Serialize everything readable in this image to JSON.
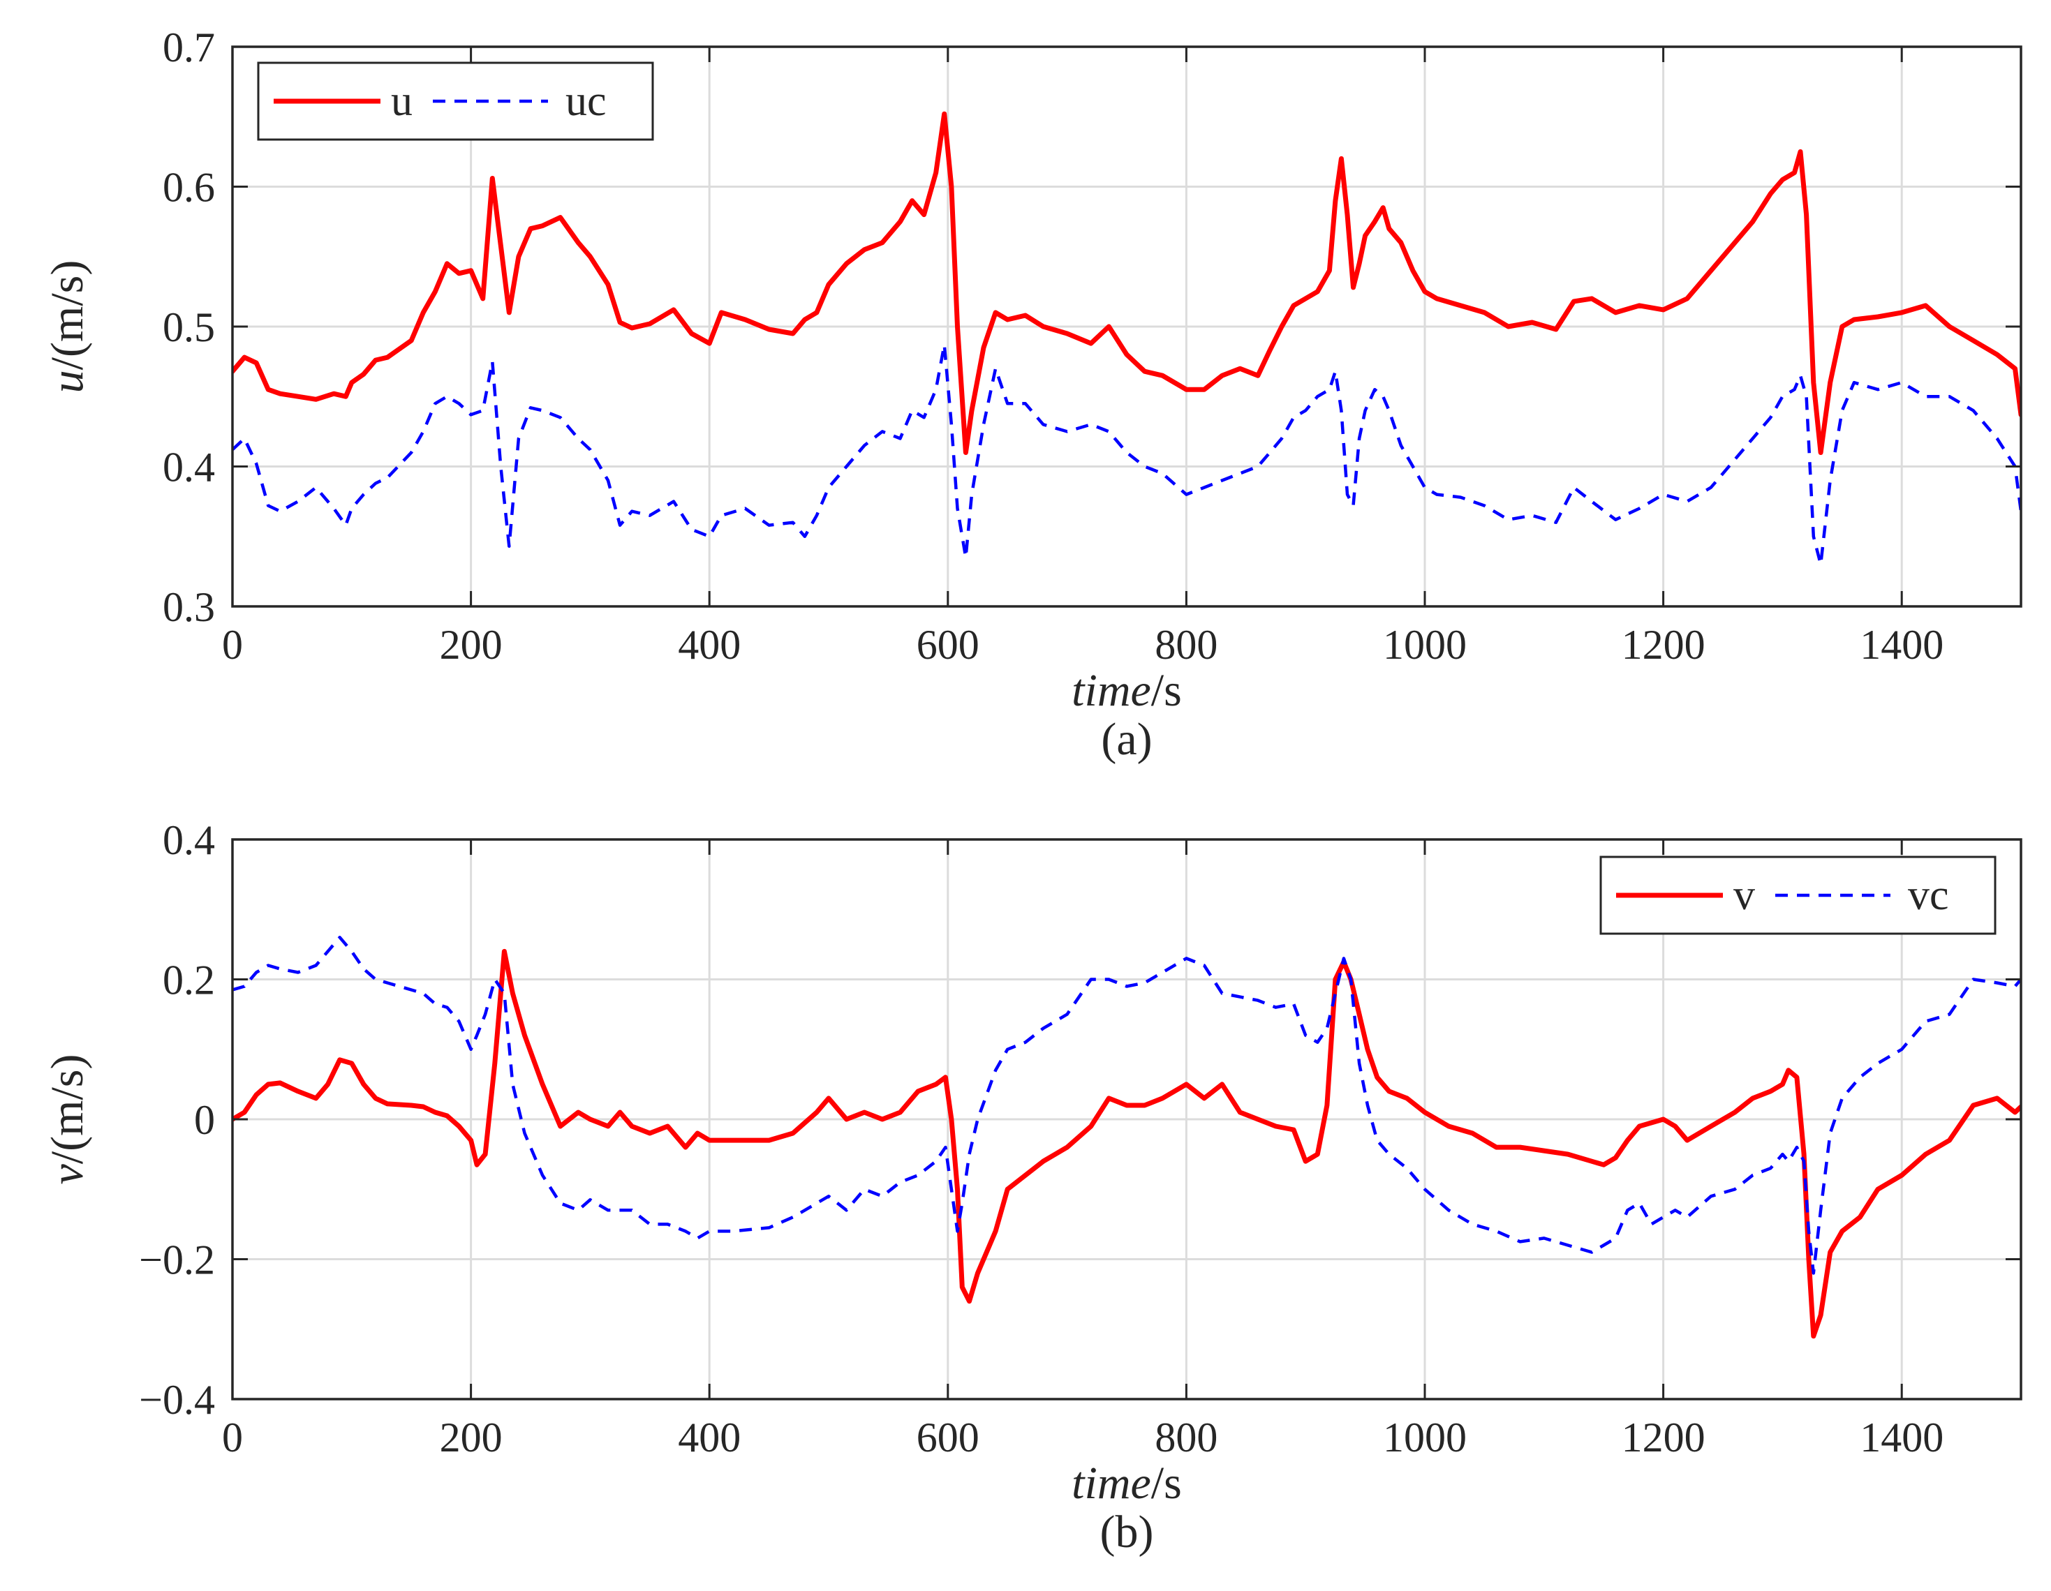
{
  "chart_data": [
    {
      "id": "a",
      "type": "line",
      "caption": "(a)",
      "ylabel_italic": "u",
      "ylabel_unit": "/(m/s)",
      "xlabel_italic": "time",
      "xlabel_unit": "/s",
      "xlim": [
        0,
        1500
      ],
      "ylim": [
        0.3,
        0.7
      ],
      "xticks": [
        0,
        200,
        400,
        600,
        800,
        1000,
        1200,
        1400
      ],
      "yticks": [
        0.3,
        0.4,
        0.5,
        0.6,
        0.7
      ],
      "ytick_labels": [
        "0.3",
        "0.4",
        "0.5",
        "0.6",
        "0.7"
      ],
      "grid": true,
      "legend_position": "top-left",
      "series": [
        {
          "name": "u",
          "color": "#ff0000",
          "style": "solid",
          "x": [
            0,
            10,
            20,
            30,
            40,
            55,
            70,
            85,
            95,
            100,
            110,
            120,
            130,
            150,
            160,
            170,
            180,
            190,
            200,
            210,
            218,
            225,
            232,
            240,
            250,
            260,
            275,
            290,
            300,
            315,
            325,
            335,
            350,
            370,
            385,
            400,
            410,
            430,
            450,
            470,
            480,
            490,
            500,
            515,
            530,
            545,
            560,
            570,
            580,
            590,
            597,
            603,
            608,
            615,
            620,
            630,
            640,
            650,
            665,
            680,
            700,
            720,
            735,
            750,
            765,
            780,
            800,
            815,
            830,
            845,
            860,
            870,
            880,
            890,
            900,
            910,
            920,
            925,
            930,
            935,
            940,
            945,
            950,
            958,
            965,
            970,
            980,
            990,
            1000,
            1010,
            1030,
            1050,
            1070,
            1090,
            1110,
            1125,
            1140,
            1160,
            1180,
            1200,
            1220,
            1240,
            1260,
            1275,
            1290,
            1300,
            1310,
            1315,
            1320,
            1326,
            1332,
            1340,
            1350,
            1360,
            1380,
            1400,
            1420,
            1440,
            1460,
            1480,
            1495,
            1500
          ],
          "y": [
            0.468,
            0.478,
            0.474,
            0.455,
            0.452,
            0.45,
            0.448,
            0.452,
            0.45,
            0.46,
            0.466,
            0.476,
            0.478,
            0.49,
            0.51,
            0.525,
            0.545,
            0.538,
            0.54,
            0.52,
            0.606,
            0.558,
            0.51,
            0.55,
            0.57,
            0.572,
            0.578,
            0.56,
            0.55,
            0.53,
            0.503,
            0.499,
            0.502,
            0.512,
            0.495,
            0.488,
            0.51,
            0.505,
            0.498,
            0.495,
            0.505,
            0.51,
            0.53,
            0.545,
            0.555,
            0.56,
            0.575,
            0.59,
            0.58,
            0.61,
            0.652,
            0.6,
            0.5,
            0.41,
            0.44,
            0.485,
            0.51,
            0.505,
            0.508,
            0.5,
            0.495,
            0.488,
            0.5,
            0.48,
            0.468,
            0.465,
            0.455,
            0.455,
            0.465,
            0.47,
            0.465,
            0.483,
            0.5,
            0.515,
            0.52,
            0.525,
            0.54,
            0.59,
            0.62,
            0.58,
            0.528,
            0.545,
            0.565,
            0.575,
            0.585,
            0.57,
            0.56,
            0.54,
            0.525,
            0.52,
            0.515,
            0.51,
            0.5,
            0.503,
            0.498,
            0.518,
            0.52,
            0.51,
            0.515,
            0.512,
            0.52,
            0.54,
            0.56,
            0.575,
            0.595,
            0.605,
            0.61,
            0.625,
            0.58,
            0.46,
            0.41,
            0.46,
            0.5,
            0.505,
            0.507,
            0.51,
            0.515,
            0.5,
            0.49,
            0.48,
            0.47,
            0.437
          ]
        },
        {
          "name": "uc",
          "color": "#0000ff",
          "style": "dashed",
          "x": [
            0,
            10,
            20,
            30,
            40,
            55,
            70,
            85,
            95,
            100,
            110,
            120,
            130,
            150,
            160,
            170,
            180,
            190,
            200,
            210,
            218,
            225,
            232,
            240,
            250,
            260,
            275,
            290,
            300,
            315,
            325,
            335,
            350,
            370,
            385,
            400,
            410,
            430,
            450,
            470,
            480,
            490,
            500,
            515,
            530,
            545,
            560,
            570,
            580,
            590,
            597,
            603,
            608,
            615,
            620,
            630,
            640,
            650,
            665,
            680,
            700,
            720,
            735,
            750,
            765,
            780,
            800,
            815,
            830,
            845,
            860,
            870,
            880,
            890,
            900,
            910,
            920,
            925,
            930,
            935,
            940,
            945,
            950,
            958,
            965,
            970,
            980,
            990,
            1000,
            1010,
            1030,
            1050,
            1070,
            1090,
            1110,
            1125,
            1140,
            1160,
            1180,
            1200,
            1220,
            1240,
            1260,
            1275,
            1290,
            1300,
            1310,
            1315,
            1320,
            1326,
            1332,
            1340,
            1350,
            1360,
            1380,
            1400,
            1420,
            1440,
            1460,
            1480,
            1495,
            1500
          ],
          "y": [
            0.412,
            0.42,
            0.402,
            0.372,
            0.368,
            0.375,
            0.385,
            0.37,
            0.358,
            0.37,
            0.38,
            0.388,
            0.392,
            0.41,
            0.425,
            0.445,
            0.45,
            0.445,
            0.437,
            0.44,
            0.475,
            0.4,
            0.343,
            0.42,
            0.442,
            0.44,
            0.435,
            0.42,
            0.412,
            0.39,
            0.358,
            0.368,
            0.365,
            0.375,
            0.355,
            0.35,
            0.365,
            0.37,
            0.358,
            0.36,
            0.35,
            0.365,
            0.385,
            0.4,
            0.415,
            0.425,
            0.42,
            0.44,
            0.435,
            0.455,
            0.487,
            0.43,
            0.37,
            0.335,
            0.38,
            0.43,
            0.47,
            0.445,
            0.445,
            0.43,
            0.425,
            0.43,
            0.425,
            0.41,
            0.4,
            0.395,
            0.38,
            0.385,
            0.39,
            0.395,
            0.4,
            0.41,
            0.42,
            0.435,
            0.44,
            0.45,
            0.455,
            0.468,
            0.44,
            0.38,
            0.372,
            0.42,
            0.44,
            0.455,
            0.45,
            0.44,
            0.415,
            0.4,
            0.385,
            0.38,
            0.378,
            0.372,
            0.362,
            0.365,
            0.36,
            0.385,
            0.375,
            0.362,
            0.37,
            0.38,
            0.375,
            0.385,
            0.405,
            0.42,
            0.435,
            0.45,
            0.455,
            0.465,
            0.45,
            0.35,
            0.33,
            0.39,
            0.44,
            0.46,
            0.455,
            0.46,
            0.45,
            0.45,
            0.44,
            0.42,
            0.4,
            0.368
          ]
        }
      ]
    },
    {
      "id": "b",
      "type": "line",
      "caption": "(b)",
      "ylabel_italic": "v",
      "ylabel_unit": "/(m/s)",
      "xlabel_italic": "time",
      "xlabel_unit": "/s",
      "xlim": [
        0,
        1500
      ],
      "ylim": [
        -0.4,
        0.4
      ],
      "xticks": [
        0,
        200,
        400,
        600,
        800,
        1000,
        1200,
        1400
      ],
      "yticks": [
        -0.4,
        -0.2,
        0,
        0.2,
        0.4
      ],
      "ytick_labels": [
        "−0.4",
        "−0.2",
        "0",
        "0.2",
        "0.4"
      ],
      "grid": true,
      "legend_position": "top-right",
      "series": [
        {
          "name": "v",
          "color": "#ff0000",
          "style": "solid",
          "x": [
            0,
            10,
            20,
            30,
            40,
            55,
            70,
            80,
            90,
            100,
            110,
            120,
            130,
            150,
            160,
            170,
            180,
            190,
            200,
            205,
            212,
            220,
            228,
            235,
            245,
            260,
            275,
            290,
            300,
            315,
            325,
            335,
            350,
            365,
            380,
            390,
            400,
            420,
            450,
            470,
            490,
            500,
            515,
            530,
            545,
            560,
            575,
            590,
            598,
            603,
            608,
            612,
            618,
            625,
            640,
            650,
            665,
            680,
            700,
            720,
            735,
            750,
            765,
            780,
            800,
            815,
            830,
            845,
            860,
            875,
            890,
            900,
            910,
            918,
            925,
            932,
            938,
            945,
            952,
            960,
            970,
            985,
            1000,
            1020,
            1040,
            1060,
            1080,
            1100,
            1120,
            1140,
            1150,
            1160,
            1170,
            1180,
            1190,
            1200,
            1210,
            1220,
            1240,
            1260,
            1275,
            1290,
            1300,
            1305,
            1312,
            1318,
            1322,
            1326,
            1332,
            1340,
            1350,
            1365,
            1380,
            1400,
            1420,
            1440,
            1460,
            1480,
            1495,
            1500
          ],
          "y": [
            0.0,
            0.01,
            0.035,
            0.05,
            0.052,
            0.04,
            0.03,
            0.05,
            0.085,
            0.08,
            0.05,
            0.03,
            0.022,
            0.02,
            0.018,
            0.01,
            0.005,
            -0.01,
            -0.03,
            -0.065,
            -0.05,
            0.08,
            0.24,
            0.18,
            0.12,
            0.05,
            -0.01,
            0.01,
            0.0,
            -0.01,
            0.01,
            -0.01,
            -0.02,
            -0.01,
            -0.04,
            -0.02,
            -0.03,
            -0.03,
            -0.03,
            -0.02,
            0.01,
            0.03,
            0.0,
            0.01,
            0.0,
            0.01,
            0.04,
            0.05,
            0.06,
            0.0,
            -0.1,
            -0.24,
            -0.26,
            -0.22,
            -0.16,
            -0.1,
            -0.08,
            -0.06,
            -0.04,
            -0.01,
            0.03,
            0.02,
            0.02,
            0.03,
            0.05,
            0.03,
            0.05,
            0.01,
            0.0,
            -0.01,
            -0.015,
            -0.06,
            -0.05,
            0.02,
            0.2,
            0.225,
            0.2,
            0.15,
            0.1,
            0.06,
            0.04,
            0.03,
            0.01,
            -0.01,
            -0.02,
            -0.04,
            -0.04,
            -0.045,
            -0.05,
            -0.06,
            -0.065,
            -0.055,
            -0.03,
            -0.01,
            -0.005,
            0.0,
            -0.01,
            -0.03,
            -0.01,
            0.01,
            0.03,
            0.04,
            0.05,
            0.07,
            0.06,
            -0.05,
            -0.2,
            -0.31,
            -0.28,
            -0.19,
            -0.16,
            -0.14,
            -0.1,
            -0.08,
            -0.05,
            -0.03,
            0.02,
            0.03,
            0.01,
            0.018
          ]
        },
        {
          "name": "vc",
          "color": "#0000ff",
          "style": "dashed",
          "x": [
            0,
            10,
            20,
            30,
            40,
            55,
            70,
            80,
            90,
            100,
            110,
            120,
            130,
            150,
            160,
            170,
            180,
            190,
            200,
            205,
            212,
            220,
            228,
            235,
            245,
            260,
            275,
            290,
            300,
            315,
            325,
            335,
            350,
            365,
            380,
            390,
            400,
            420,
            450,
            470,
            490,
            500,
            515,
            530,
            545,
            560,
            575,
            590,
            598,
            603,
            608,
            612,
            618,
            625,
            640,
            650,
            665,
            680,
            700,
            720,
            735,
            750,
            765,
            780,
            800,
            815,
            830,
            845,
            860,
            875,
            890,
            900,
            910,
            918,
            925,
            932,
            938,
            945,
            952,
            960,
            970,
            985,
            1000,
            1020,
            1040,
            1060,
            1080,
            1100,
            1120,
            1140,
            1150,
            1160,
            1170,
            1180,
            1190,
            1200,
            1210,
            1220,
            1240,
            1260,
            1275,
            1290,
            1300,
            1305,
            1312,
            1318,
            1322,
            1326,
            1332,
            1340,
            1350,
            1365,
            1380,
            1400,
            1420,
            1440,
            1460,
            1480,
            1495,
            1500
          ],
          "y": [
            0.185,
            0.19,
            0.21,
            0.22,
            0.215,
            0.21,
            0.22,
            0.24,
            0.26,
            0.24,
            0.215,
            0.2,
            0.195,
            0.185,
            0.18,
            0.165,
            0.16,
            0.14,
            0.1,
            0.12,
            0.15,
            0.2,
            0.18,
            0.05,
            -0.02,
            -0.08,
            -0.12,
            -0.13,
            -0.115,
            -0.13,
            -0.13,
            -0.13,
            -0.15,
            -0.15,
            -0.16,
            -0.17,
            -0.16,
            -0.16,
            -0.155,
            -0.14,
            -0.12,
            -0.11,
            -0.13,
            -0.1,
            -0.11,
            -0.09,
            -0.08,
            -0.06,
            -0.04,
            -0.1,
            -0.16,
            -0.12,
            -0.05,
            0.0,
            0.07,
            0.1,
            0.11,
            0.13,
            0.15,
            0.2,
            0.2,
            0.19,
            0.195,
            0.21,
            0.23,
            0.22,
            0.18,
            0.175,
            0.17,
            0.16,
            0.165,
            0.12,
            0.11,
            0.13,
            0.18,
            0.23,
            0.2,
            0.08,
            0.02,
            -0.03,
            -0.05,
            -0.07,
            -0.1,
            -0.13,
            -0.15,
            -0.16,
            -0.175,
            -0.17,
            -0.18,
            -0.19,
            -0.18,
            -0.17,
            -0.13,
            -0.12,
            -0.15,
            -0.14,
            -0.13,
            -0.14,
            -0.11,
            -0.1,
            -0.08,
            -0.07,
            -0.05,
            -0.06,
            -0.04,
            -0.06,
            -0.16,
            -0.22,
            -0.13,
            -0.02,
            0.03,
            0.06,
            0.08,
            0.1,
            0.14,
            0.15,
            0.2,
            0.195,
            0.19,
            0.2
          ]
        }
      ]
    }
  ]
}
